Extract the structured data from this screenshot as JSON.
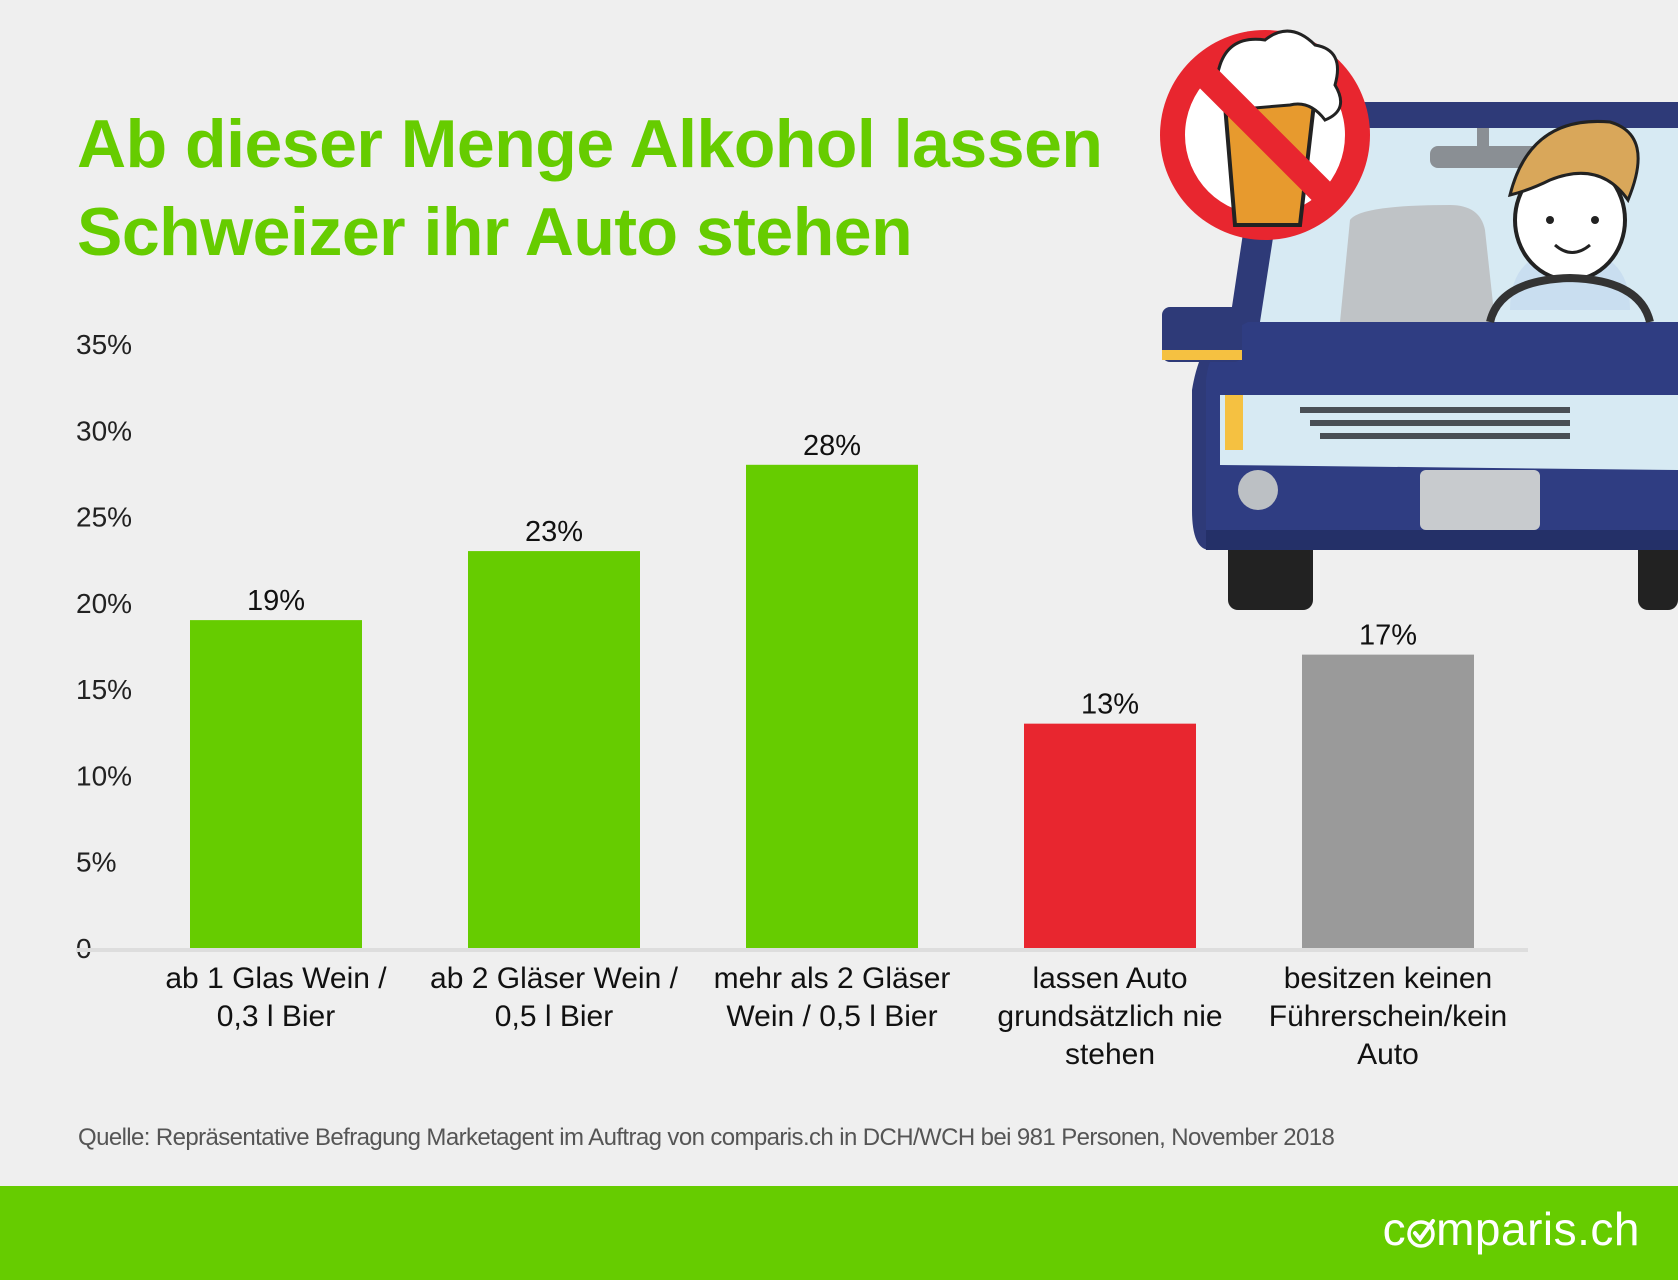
{
  "title": {
    "line1": "Ab dieser Menge Alkohol lassen",
    "line2": "Schweizer ihr Auto stehen"
  },
  "colors": {
    "green": "#66cc00",
    "red": "#e8262f",
    "gray": "#9a9a9a",
    "background": "#efefef"
  },
  "chart_data": {
    "type": "bar",
    "categories": [
      [
        "ab 1 Glas Wein /",
        "0,3 l Bier"
      ],
      [
        "ab 2 Gläser Wein /",
        "0,5 l Bier"
      ],
      [
        "mehr als 2 Gläser",
        "Wein / 0,5 l Bier"
      ],
      [
        "lassen Auto",
        "grundsätzlich nie",
        "stehen"
      ],
      [
        "besitzen keinen",
        "Führerschein/kein",
        "Auto"
      ]
    ],
    "values": [
      19,
      23,
      28,
      13,
      17
    ],
    "value_labels": [
      "19%",
      "23%",
      "28%",
      "13%",
      "17%"
    ],
    "bar_colors": [
      "#66cc00",
      "#66cc00",
      "#66cc00",
      "#e8262f",
      "#9a9a9a"
    ],
    "ylim": [
      0,
      35
    ],
    "yticks": [
      {
        "value": 0,
        "label": "0"
      },
      {
        "value": 5,
        "label": "5%"
      },
      {
        "value": 10,
        "label": "10%"
      },
      {
        "value": 15,
        "label": "15%"
      },
      {
        "value": 20,
        "label": "20%"
      },
      {
        "value": 25,
        "label": "25%"
      },
      {
        "value": 30,
        "label": "30%"
      },
      {
        "value": 35,
        "label": "35%"
      }
    ],
    "grid": false,
    "legend": "none"
  },
  "source": "Quelle: Repräsentative Befragung Marketagent im Auftrag von comparis.ch in DCH/WCH bei 981 Personen, November 2018",
  "footer": {
    "brand_prefix": "c",
    "brand_suffix": "mparis.ch"
  },
  "illustration": {
    "icon": "no-drinking-and-driving-icon"
  }
}
